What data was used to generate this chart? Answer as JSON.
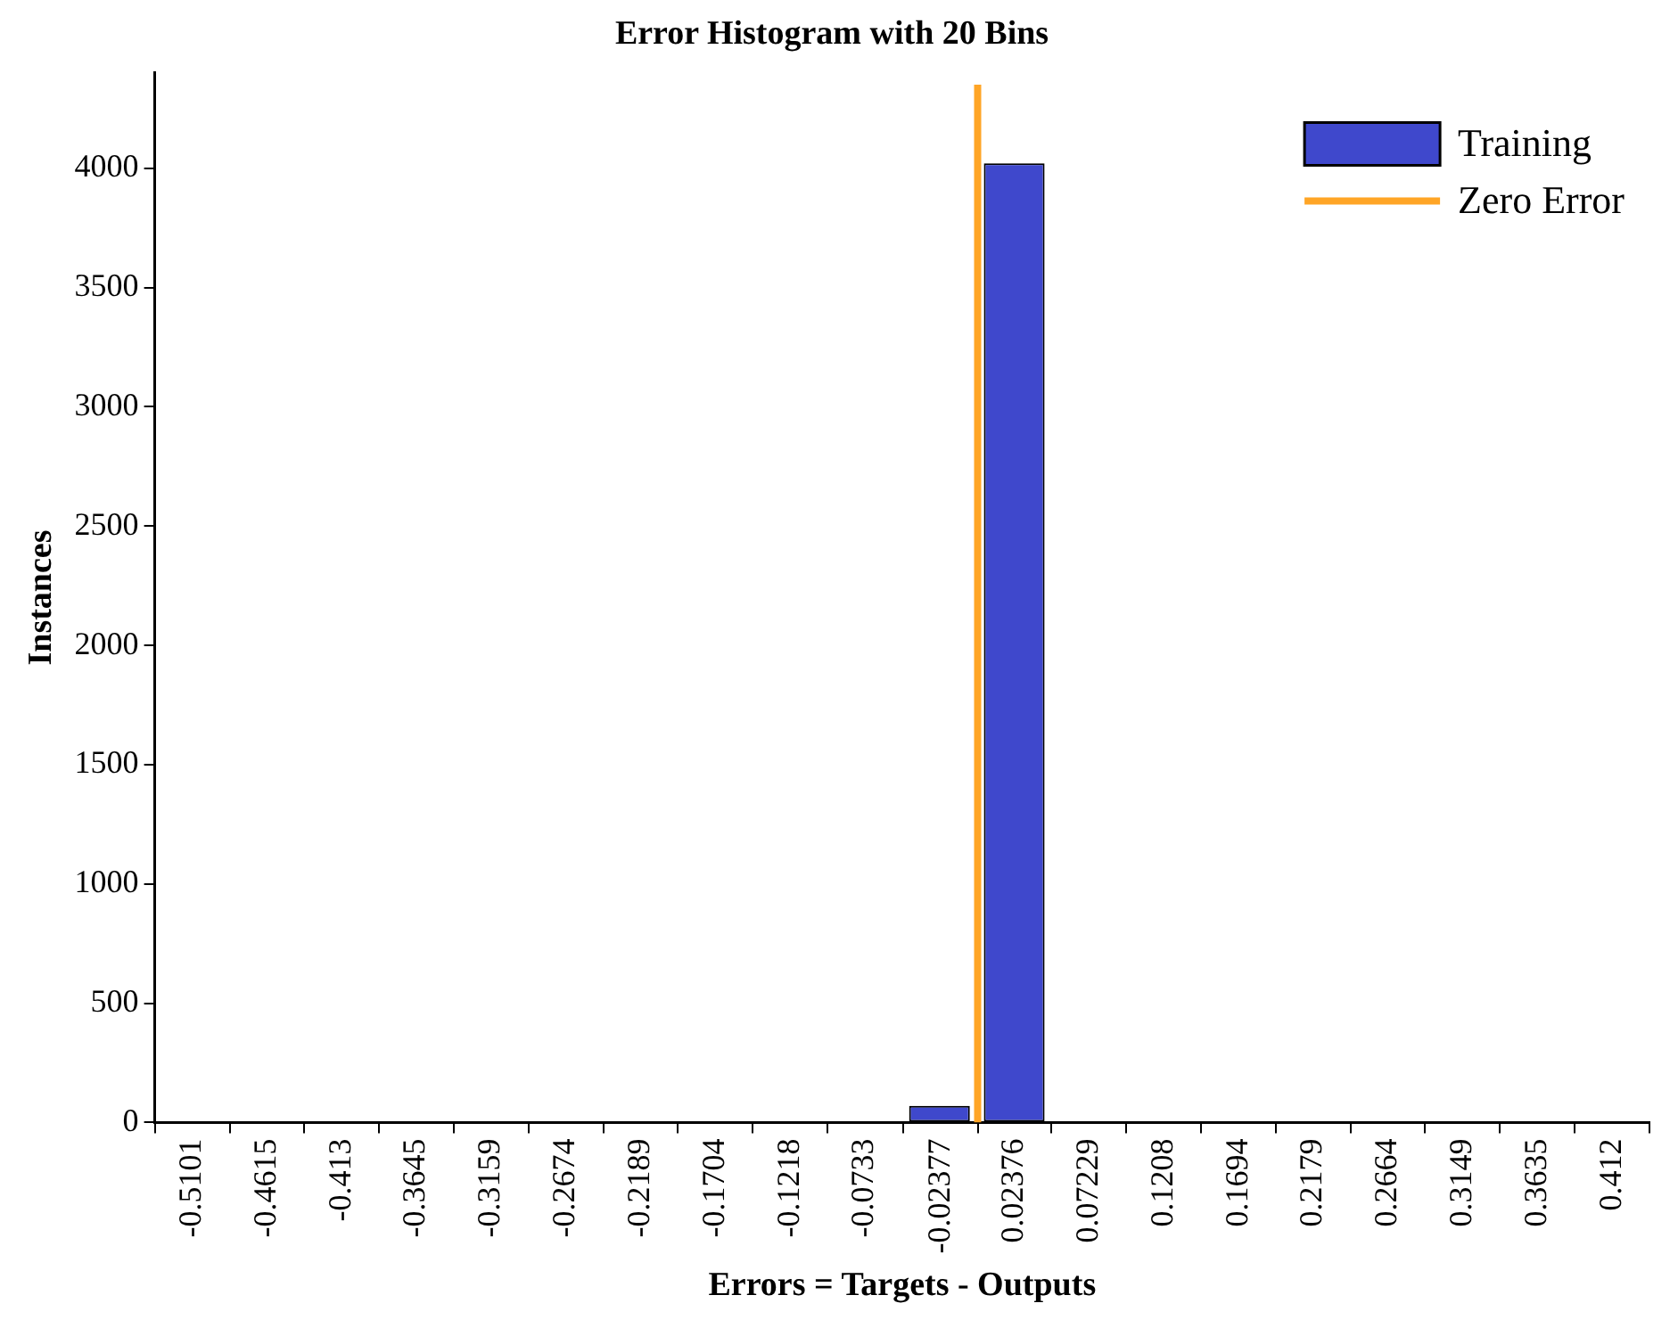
{
  "chart_data": {
    "type": "histogram",
    "title": "Error Histogram with 20 Bins",
    "xlabel": "Errors = Targets - Outputs",
    "ylabel": "Instances",
    "bins": [
      -0.5344,
      -0.4859,
      -0.4373,
      -0.3888,
      -0.3403,
      -0.2917,
      -0.2432,
      -0.1947,
      -0.1461,
      -0.0976,
      -0.0491,
      -0.0005,
      0.048,
      0.0965,
      0.1451,
      0.1936,
      0.2421,
      0.2907,
      0.3392,
      0.3877,
      0.4363
    ],
    "series": [
      {
        "name": "Training",
        "color": "#3f48cc",
        "values": [
          0,
          0,
          0,
          0,
          0,
          0,
          0,
          0,
          0,
          0,
          70,
          4020,
          0,
          0,
          0,
          0,
          0,
          0,
          0,
          0
        ]
      },
      {
        "name": "Zero Error",
        "type": "line",
        "color": "#ffa526",
        "x": [
          0,
          0
        ],
        "values": [
          0,
          4350
        ]
      }
    ],
    "xlim": [
      -0.5344,
      0.4363
    ],
    "ylim": [
      0,
      4400
    ],
    "xticks": [
      -0.5101,
      -0.4615,
      -0.413,
      -0.3645,
      -0.3159,
      -0.2674,
      -0.2189,
      -0.1704,
      -0.1218,
      -0.0733,
      -0.02377,
      0.02376,
      0.07229,
      0.1208,
      0.1694,
      0.2179,
      0.2664,
      0.3149,
      0.3635,
      0.412
    ],
    "yticks": [
      0,
      500,
      1000,
      1500,
      2000,
      2500,
      3000,
      3500,
      4000
    ],
    "grid": false,
    "legend": "top right"
  }
}
